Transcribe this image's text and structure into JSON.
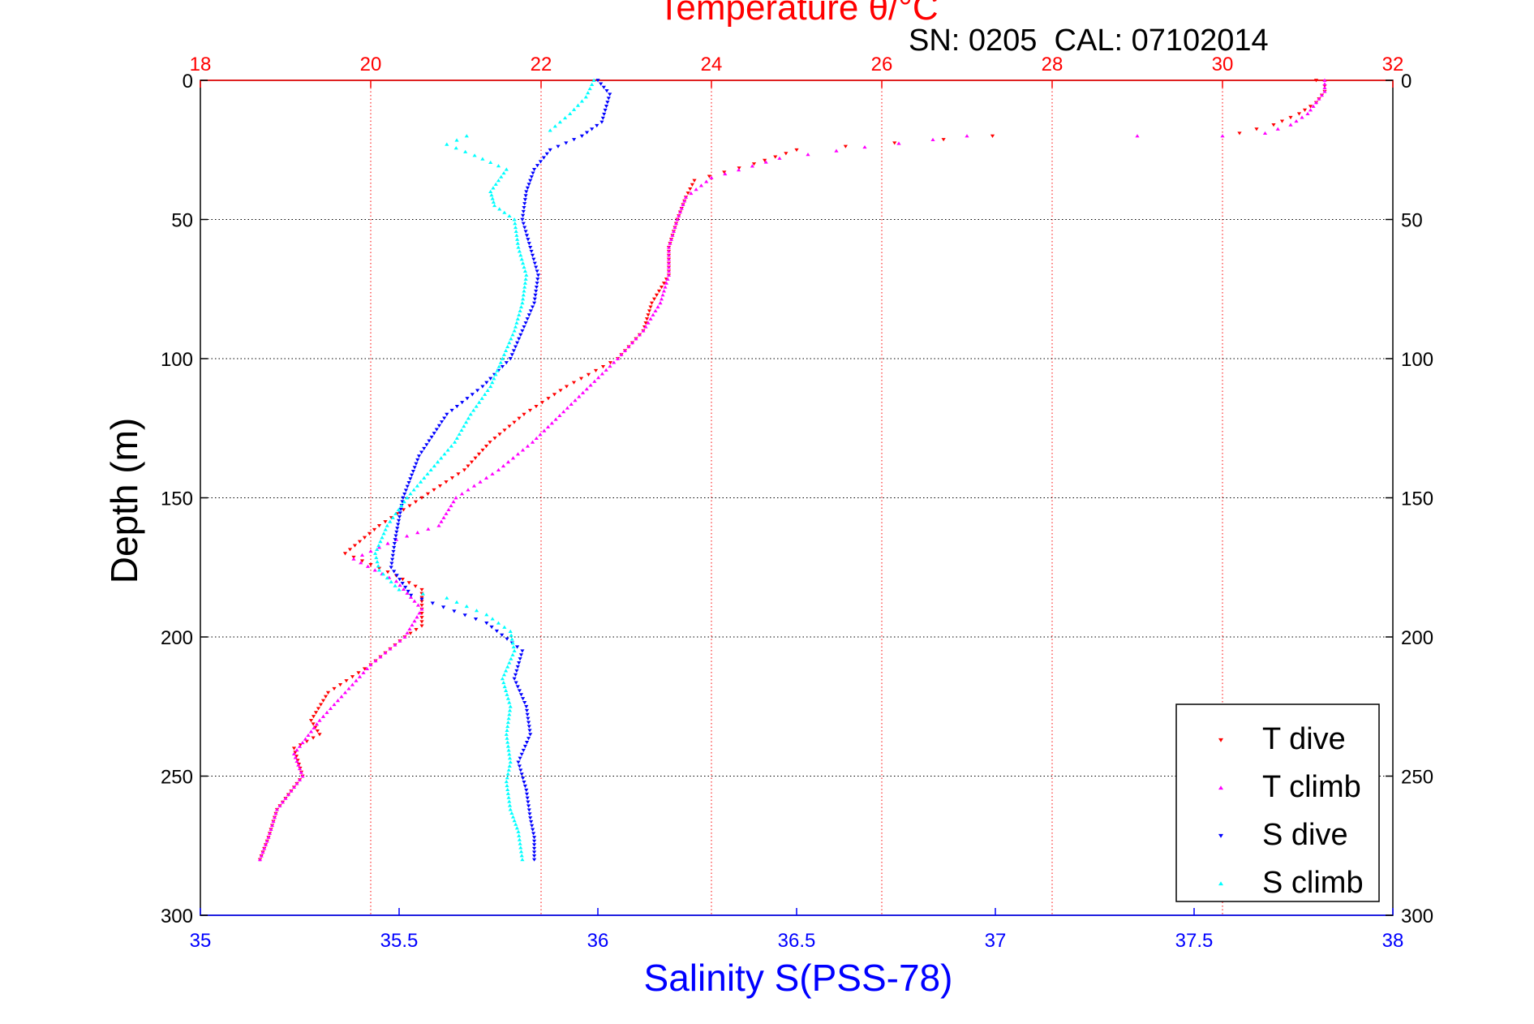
{
  "figure": {
    "top_title": "Temperature θ/°C",
    "serial_caption": "SN: 0205  CAL: 07102014"
  },
  "chart_data": {
    "type": "scatter",
    "x_top": {
      "label": "Temperature θ/°C",
      "range": [
        18,
        32
      ],
      "ticks": [
        18,
        20,
        22,
        24,
        26,
        28,
        30,
        32
      ],
      "color": "#ff0000"
    },
    "x_bottom": {
      "label": "Salinity S(PSS-78)",
      "range": [
        35,
        38
      ],
      "ticks": [
        "35",
        "35.5",
        "36",
        "36.5",
        "37",
        "37.5",
        "38"
      ],
      "color": "#0000ff"
    },
    "y": {
      "label": "Depth (m)",
      "range": [
        0,
        300
      ],
      "ticks": [
        0,
        50,
        100,
        150,
        200,
        250,
        300
      ],
      "inverted": true
    },
    "grid": true,
    "legend_position": "bottom-right",
    "series": [
      {
        "name": "T dive",
        "axis": "temperature",
        "color": "#ff0000",
        "marker": "triangle-down",
        "points": [
          [
            31.1,
            0
          ],
          [
            31.2,
            2
          ],
          [
            31.2,
            4
          ],
          [
            31.1,
            8
          ],
          [
            30.9,
            12
          ],
          [
            30.6,
            16
          ],
          [
            30.2,
            19
          ],
          [
            27.3,
            20
          ],
          [
            25.0,
            25
          ],
          [
            24.5,
            30
          ],
          [
            23.8,
            36
          ],
          [
            23.7,
            42
          ],
          [
            23.6,
            50
          ],
          [
            23.5,
            60
          ],
          [
            23.5,
            70
          ],
          [
            23.3,
            80
          ],
          [
            23.2,
            90
          ],
          [
            22.9,
            100
          ],
          [
            22.3,
            110
          ],
          [
            21.8,
            120
          ],
          [
            21.4,
            130
          ],
          [
            21.1,
            140
          ],
          [
            20.6,
            150
          ],
          [
            20.1,
            160
          ],
          [
            19.7,
            170
          ],
          [
            20.3,
            178
          ],
          [
            20.6,
            183
          ],
          [
            20.6,
            190
          ],
          [
            20.6,
            196
          ],
          [
            20.4,
            200
          ],
          [
            20.0,
            210
          ],
          [
            19.5,
            220
          ],
          [
            19.3,
            230
          ],
          [
            19.4,
            235
          ],
          [
            19.1,
            240
          ],
          [
            19.2,
            250
          ],
          [
            18.9,
            262
          ],
          [
            18.8,
            272
          ],
          [
            18.7,
            280
          ]
        ]
      },
      {
        "name": "T climb",
        "axis": "temperature",
        "color": "#ff00ff",
        "marker": "triangle-up",
        "points": [
          [
            18.7,
            280
          ],
          [
            18.8,
            272
          ],
          [
            18.9,
            262
          ],
          [
            19.2,
            250
          ],
          [
            19.1,
            242
          ],
          [
            19.4,
            230
          ],
          [
            19.7,
            220
          ],
          [
            20.0,
            210
          ],
          [
            20.4,
            200
          ],
          [
            20.6,
            190
          ],
          [
            20.3,
            180
          ],
          [
            19.8,
            172
          ],
          [
            20.3,
            165
          ],
          [
            20.8,
            160
          ],
          [
            21.0,
            150
          ],
          [
            21.5,
            140
          ],
          [
            21.9,
            130
          ],
          [
            22.4,
            115
          ],
          [
            22.9,
            100
          ],
          [
            23.2,
            90
          ],
          [
            23.4,
            80
          ],
          [
            23.5,
            70
          ],
          [
            23.5,
            60
          ],
          [
            23.6,
            50
          ],
          [
            23.7,
            42
          ],
          [
            24.0,
            35
          ],
          [
            24.8,
            28
          ],
          [
            25.8,
            24
          ],
          [
            27.0,
            20
          ],
          [
            29.0,
            20
          ],
          [
            30.0,
            20
          ],
          [
            30.5,
            19
          ],
          [
            30.8,
            16
          ],
          [
            31.0,
            12
          ],
          [
            31.1,
            8
          ],
          [
            31.2,
            4
          ],
          [
            31.2,
            0
          ]
        ]
      },
      {
        "name": "S dive",
        "axis": "salinity",
        "color": "#0000ff",
        "marker": "triangle-down",
        "points": [
          [
            36.0,
            0
          ],
          [
            36.03,
            5
          ],
          [
            36.01,
            15
          ],
          [
            35.96,
            20
          ],
          [
            35.88,
            25
          ],
          [
            35.84,
            32
          ],
          [
            35.82,
            40
          ],
          [
            35.81,
            50
          ],
          [
            35.83,
            60
          ],
          [
            35.85,
            70
          ],
          [
            35.84,
            80
          ],
          [
            35.81,
            90
          ],
          [
            35.78,
            100
          ],
          [
            35.71,
            110
          ],
          [
            35.62,
            120
          ],
          [
            35.55,
            135
          ],
          [
            35.51,
            150
          ],
          [
            35.49,
            165
          ],
          [
            35.48,
            175
          ],
          [
            35.53,
            185
          ],
          [
            35.72,
            195
          ],
          [
            35.81,
            205
          ],
          [
            35.79,
            215
          ],
          [
            35.82,
            225
          ],
          [
            35.83,
            235
          ],
          [
            35.8,
            245
          ],
          [
            35.82,
            255
          ],
          [
            35.83,
            265
          ],
          [
            35.84,
            272
          ],
          [
            35.84,
            280
          ]
        ]
      },
      {
        "name": "S climb",
        "axis": "salinity",
        "color": "#00ffff",
        "marker": "triangle-up",
        "points": [
          [
            35.81,
            280
          ],
          [
            35.8,
            270
          ],
          [
            35.78,
            262
          ],
          [
            35.77,
            252
          ],
          [
            35.78,
            245
          ],
          [
            35.77,
            235
          ],
          [
            35.78,
            225
          ],
          [
            35.76,
            215
          ],
          [
            35.79,
            205
          ],
          [
            35.78,
            198
          ],
          [
            35.72,
            192
          ],
          [
            35.62,
            186
          ],
          [
            35.5,
            183
          ],
          [
            35.45,
            176
          ],
          [
            35.44,
            170
          ],
          [
            35.47,
            160
          ],
          [
            35.52,
            150
          ],
          [
            35.58,
            140
          ],
          [
            35.64,
            130
          ],
          [
            35.68,
            120
          ],
          [
            35.73,
            110
          ],
          [
            35.76,
            100
          ],
          [
            35.79,
            90
          ],
          [
            35.81,
            80
          ],
          [
            35.82,
            70
          ],
          [
            35.8,
            60
          ],
          [
            35.79,
            50
          ],
          [
            35.74,
            45
          ],
          [
            35.73,
            40
          ],
          [
            35.77,
            32
          ],
          [
            35.69,
            27
          ],
          [
            35.62,
            23
          ],
          [
            35.67,
            20
          ],
          [
            35.88,
            18
          ],
          [
            35.93,
            12
          ],
          [
            35.97,
            6
          ],
          [
            35.99,
            0
          ]
        ]
      }
    ]
  }
}
